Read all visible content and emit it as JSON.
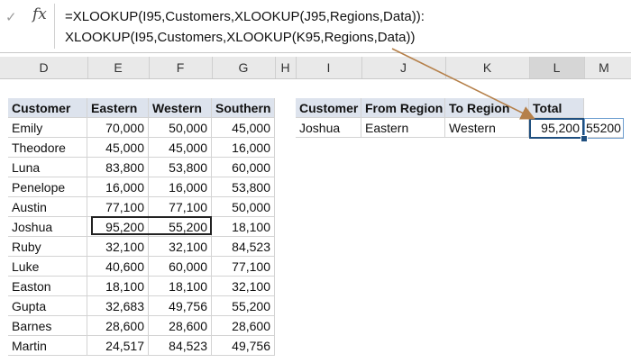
{
  "formula_bar": {
    "check_icon": "✓",
    "fx_label": "fx",
    "line1": "=XLOOKUP(I95,Customers,XLOOKUP(J95,Regions,Data)):",
    "line2": "XLOOKUP(I95,Customers,XLOOKUP(K95,Regions,Data))"
  },
  "columns": [
    "D",
    "E",
    "F",
    "G",
    "H",
    "I",
    "J",
    "K",
    "L",
    "M"
  ],
  "left_table": {
    "headers": [
      "Customer",
      "Eastern",
      "Western",
      "Southern"
    ],
    "rows": [
      [
        "Emily",
        "70,000",
        "50,000",
        "45,000"
      ],
      [
        "Theodore",
        "45,000",
        "45,000",
        "16,000"
      ],
      [
        "Luna",
        "83,800",
        "53,800",
        "60,000"
      ],
      [
        "Penelope",
        "16,000",
        "16,000",
        "53,800"
      ],
      [
        "Austin",
        "77,100",
        "77,100",
        "50,000"
      ],
      [
        "Joshua",
        "95,200",
        "55,200",
        "18,100"
      ],
      [
        "Ruby",
        "32,100",
        "32,100",
        "84,523"
      ],
      [
        "Luke",
        "40,600",
        "60,000",
        "77,100"
      ],
      [
        "Easton",
        "18,100",
        "18,100",
        "32,100"
      ],
      [
        "Gupta",
        "32,683",
        "49,756",
        "55,200"
      ],
      [
        "Barnes",
        "28,600",
        "28,600",
        "28,600"
      ],
      [
        "Martin",
        "24,517",
        "84,523",
        "49,756"
      ]
    ]
  },
  "right_table": {
    "headers": [
      "Customer",
      "From Region",
      "To Region",
      "Total"
    ],
    "row": [
      "Joshua",
      "Eastern",
      "Western",
      "95,200"
    ],
    "spill_value": "55200"
  },
  "colors": {
    "header_fill": "#dde3ed",
    "arrow": "#b5804a",
    "active_border": "#1f4f7f"
  }
}
